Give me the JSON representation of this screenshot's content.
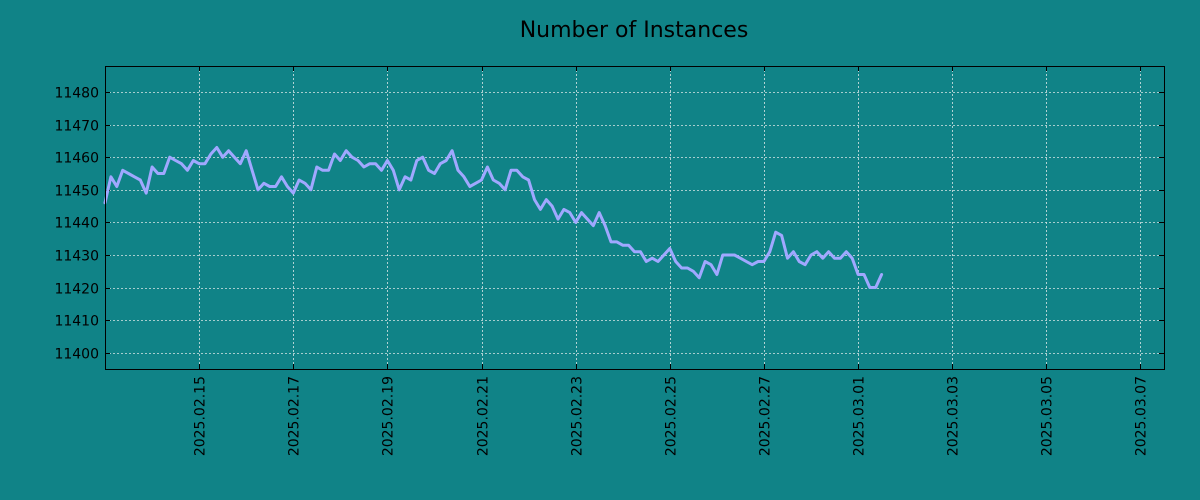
{
  "colors": {
    "background": "#108387",
    "line": "#a0a8ff",
    "grid": "#d8e6e6",
    "axis": "#000000"
  },
  "chart_data": {
    "type": "line",
    "title": "Number of Instances",
    "xlabel": "",
    "ylabel": "",
    "grid": true,
    "x_range": [
      "2025-02-13",
      "2025-03-07 12:00"
    ],
    "x_ticks": [
      "2025.02.15",
      "2025.02.17",
      "2025.02.19",
      "2025.02.21",
      "2025.02.23",
      "2025.02.25",
      "2025.02.27",
      "2025.03.01",
      "2025.03.03",
      "2025.03.05",
      "2025.03.07"
    ],
    "ylim": [
      11395,
      11488
    ],
    "y_ticks": [
      11400,
      11410,
      11420,
      11430,
      11440,
      11450,
      11460,
      11470,
      11480
    ],
    "series": [
      {
        "points": [
          [
            "2025-02-13 00:00",
            11446
          ],
          [
            "2025-02-13 03:00",
            11454
          ],
          [
            "2025-02-13 06:00",
            11451
          ],
          [
            "2025-02-13 09:00",
            11456
          ],
          [
            "2025-02-13 12:00",
            11455
          ],
          [
            "2025-02-13 15:00",
            11454
          ],
          [
            "2025-02-13 18:00",
            11453
          ],
          [
            "2025-02-13 21:00",
            11449
          ],
          [
            "2025-02-14 00:00",
            11457
          ],
          [
            "2025-02-14 03:00",
            11455
          ],
          [
            "2025-02-14 06:00",
            11455
          ],
          [
            "2025-02-14 09:00",
            11460
          ],
          [
            "2025-02-14 12:00",
            11459
          ],
          [
            "2025-02-14 15:00",
            11458
          ],
          [
            "2025-02-14 18:00",
            11456
          ],
          [
            "2025-02-14 21:00",
            11459
          ],
          [
            "2025-02-15 00:00",
            11458
          ],
          [
            "2025-02-15 03:00",
            11458
          ],
          [
            "2025-02-15 06:00",
            11461
          ],
          [
            "2025-02-15 09:00",
            11463
          ],
          [
            "2025-02-15 12:00",
            11460
          ],
          [
            "2025-02-15 15:00",
            11462
          ],
          [
            "2025-02-15 18:00",
            11460
          ],
          [
            "2025-02-15 21:00",
            11458
          ],
          [
            "2025-02-16 00:00",
            11462
          ],
          [
            "2025-02-16 03:00",
            11456
          ],
          [
            "2025-02-16 06:00",
            11450
          ],
          [
            "2025-02-16 09:00",
            11452
          ],
          [
            "2025-02-16 12:00",
            11451
          ],
          [
            "2025-02-16 15:00",
            11451
          ],
          [
            "2025-02-16 18:00",
            11454
          ],
          [
            "2025-02-16 21:00",
            11451
          ],
          [
            "2025-02-17 00:00",
            11449
          ],
          [
            "2025-02-17 03:00",
            11453
          ],
          [
            "2025-02-17 06:00",
            11452
          ],
          [
            "2025-02-17 09:00",
            11450
          ],
          [
            "2025-02-17 12:00",
            11457
          ],
          [
            "2025-02-17 15:00",
            11456
          ],
          [
            "2025-02-17 18:00",
            11456
          ],
          [
            "2025-02-17 21:00",
            11461
          ],
          [
            "2025-02-18 00:00",
            11459
          ],
          [
            "2025-02-18 03:00",
            11462
          ],
          [
            "2025-02-18 06:00",
            11460
          ],
          [
            "2025-02-18 09:00",
            11459
          ],
          [
            "2025-02-18 12:00",
            11457
          ],
          [
            "2025-02-18 15:00",
            11458
          ],
          [
            "2025-02-18 18:00",
            11458
          ],
          [
            "2025-02-18 21:00",
            11456
          ],
          [
            "2025-02-19 00:00",
            11459
          ],
          [
            "2025-02-19 03:00",
            11456
          ],
          [
            "2025-02-19 06:00",
            11450
          ],
          [
            "2025-02-19 09:00",
            11454
          ],
          [
            "2025-02-19 12:00",
            11453
          ],
          [
            "2025-02-19 15:00",
            11459
          ],
          [
            "2025-02-19 18:00",
            11460
          ],
          [
            "2025-02-19 21:00",
            11456
          ],
          [
            "2025-02-20 00:00",
            11455
          ],
          [
            "2025-02-20 03:00",
            11458
          ],
          [
            "2025-02-20 06:00",
            11459
          ],
          [
            "2025-02-20 09:00",
            11462
          ],
          [
            "2025-02-20 12:00",
            11456
          ],
          [
            "2025-02-20 15:00",
            11454
          ],
          [
            "2025-02-20 18:00",
            11451
          ],
          [
            "2025-02-20 21:00",
            11452
          ],
          [
            "2025-02-21 00:00",
            11453
          ],
          [
            "2025-02-21 03:00",
            11457
          ],
          [
            "2025-02-21 06:00",
            11453
          ],
          [
            "2025-02-21 09:00",
            11452
          ],
          [
            "2025-02-21 12:00",
            11450
          ],
          [
            "2025-02-21 15:00",
            11456
          ],
          [
            "2025-02-21 18:00",
            11456
          ],
          [
            "2025-02-21 21:00",
            11454
          ],
          [
            "2025-02-22 00:00",
            11453
          ],
          [
            "2025-02-22 03:00",
            11447
          ],
          [
            "2025-02-22 06:00",
            11444
          ],
          [
            "2025-02-22 09:00",
            11447
          ],
          [
            "2025-02-22 12:00",
            11445
          ],
          [
            "2025-02-22 15:00",
            11441
          ],
          [
            "2025-02-22 18:00",
            11444
          ],
          [
            "2025-02-22 21:00",
            11443
          ],
          [
            "2025-02-23 00:00",
            11440
          ],
          [
            "2025-02-23 03:00",
            11443
          ],
          [
            "2025-02-23 06:00",
            11441
          ],
          [
            "2025-02-23 09:00",
            11439
          ],
          [
            "2025-02-23 12:00",
            11443
          ],
          [
            "2025-02-23 15:00",
            11439
          ],
          [
            "2025-02-23 18:00",
            11434
          ],
          [
            "2025-02-23 21:00",
            11434
          ],
          [
            "2025-02-24 00:00",
            11433
          ],
          [
            "2025-02-24 03:00",
            11433
          ],
          [
            "2025-02-24 06:00",
            11431
          ],
          [
            "2025-02-24 09:00",
            11431
          ],
          [
            "2025-02-24 12:00",
            11428
          ],
          [
            "2025-02-24 15:00",
            11429
          ],
          [
            "2025-02-24 18:00",
            11428
          ],
          [
            "2025-02-24 21:00",
            11430
          ],
          [
            "2025-02-25 00:00",
            11432
          ],
          [
            "2025-02-25 03:00",
            11428
          ],
          [
            "2025-02-25 06:00",
            11426
          ],
          [
            "2025-02-25 09:00",
            11426
          ],
          [
            "2025-02-25 12:00",
            11425
          ],
          [
            "2025-02-25 15:00",
            11423
          ],
          [
            "2025-02-25 18:00",
            11428
          ],
          [
            "2025-02-25 21:00",
            11427
          ],
          [
            "2025-02-26 00:00",
            11424
          ],
          [
            "2025-02-26 03:00",
            11430
          ],
          [
            "2025-02-26 06:00",
            11430
          ],
          [
            "2025-02-26 09:00",
            11430
          ],
          [
            "2025-02-26 12:00",
            11429
          ],
          [
            "2025-02-26 15:00",
            11428
          ],
          [
            "2025-02-26 18:00",
            11427
          ],
          [
            "2025-02-26 21:00",
            11428
          ],
          [
            "2025-02-27 00:00",
            11428
          ],
          [
            "2025-02-27 03:00",
            11431
          ],
          [
            "2025-02-27 06:00",
            11437
          ],
          [
            "2025-02-27 09:00",
            11436
          ],
          [
            "2025-02-27 12:00",
            11429
          ],
          [
            "2025-02-27 15:00",
            11431
          ],
          [
            "2025-02-27 18:00",
            11428
          ],
          [
            "2025-02-27 21:00",
            11427
          ],
          [
            "2025-02-28 00:00",
            11430
          ],
          [
            "2025-02-28 03:00",
            11431
          ],
          [
            "2025-02-28 06:00",
            11429
          ],
          [
            "2025-02-28 09:00",
            11431
          ],
          [
            "2025-02-28 12:00",
            11429
          ],
          [
            "2025-02-28 15:00",
            11429
          ],
          [
            "2025-02-28 18:00",
            11431
          ],
          [
            "2025-02-28 21:00",
            11429
          ],
          [
            "2025-03-01 00:00",
            11424
          ],
          [
            "2025-03-01 03:00",
            11424
          ],
          [
            "2025-03-01 06:00",
            11420
          ],
          [
            "2025-03-01 09:00",
            11420
          ],
          [
            "2025-03-01 12:00",
            11424
          ]
        ]
      }
    ]
  }
}
